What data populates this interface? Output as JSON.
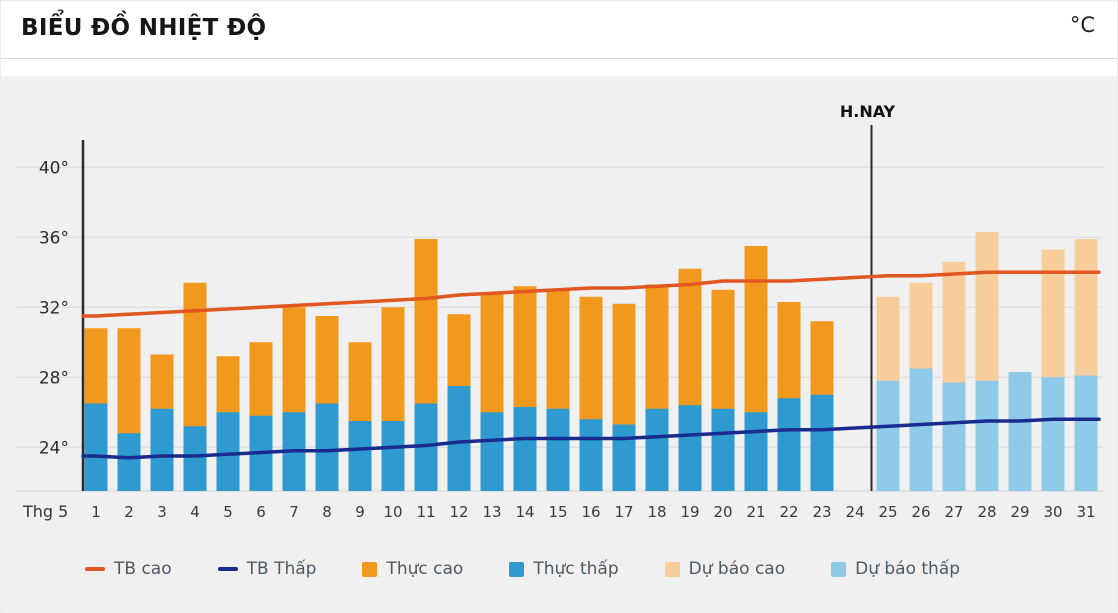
{
  "header": {
    "title": "BIỂU ĐỒ NHIỆT ĐỘ",
    "unit": "°C"
  },
  "chart_data": {
    "type": "bar",
    "title": "BIỂU ĐỒ NHIỆT ĐỘ",
    "unit": "°C",
    "month_label": "Thg 5",
    "today_label": "H.NAY",
    "today_after_day": 24,
    "x": [
      1,
      2,
      3,
      4,
      5,
      6,
      7,
      8,
      9,
      10,
      11,
      12,
      13,
      14,
      15,
      16,
      17,
      18,
      19,
      20,
      21,
      22,
      23,
      24,
      25,
      26,
      27,
      28,
      29,
      30,
      31
    ],
    "y_ticks": [
      24,
      28,
      32,
      36,
      40
    ],
    "ylim": [
      21.5,
      42
    ],
    "grid": true,
    "legend_position": "bottom",
    "series": [
      {
        "name": "TB cao",
        "type": "line",
        "color": "#E2561F",
        "values": [
          31.5,
          31.6,
          31.7,
          31.8,
          31.9,
          32.0,
          32.1,
          32.2,
          32.3,
          32.4,
          32.5,
          32.7,
          32.8,
          32.9,
          33.0,
          33.1,
          33.1,
          33.2,
          33.3,
          33.5,
          33.5,
          33.5,
          33.6,
          33.7,
          33.8,
          33.8,
          33.9,
          34.0,
          34.0,
          34.0,
          34.0
        ]
      },
      {
        "name": "TB Thấp",
        "type": "line",
        "color": "#1A2B8F",
        "values": [
          23.5,
          23.4,
          23.5,
          23.5,
          23.6,
          23.7,
          23.8,
          23.8,
          23.9,
          24.0,
          24.1,
          24.3,
          24.4,
          24.5,
          24.5,
          24.5,
          24.5,
          24.6,
          24.7,
          24.8,
          24.9,
          25.0,
          25.0,
          25.1,
          25.2,
          25.3,
          25.4,
          25.5,
          25.5,
          25.6,
          25.6
        ]
      },
      {
        "name": "Thực cao",
        "type": "bar",
        "color": "#F2991D",
        "values": [
          30.8,
          30.8,
          29.3,
          33.4,
          29.2,
          30.0,
          32.0,
          31.5,
          30.0,
          32.0,
          35.9,
          31.6,
          32.8,
          33.2,
          33.0,
          32.6,
          32.2,
          33.3,
          34.2,
          33.0,
          35.5,
          32.3,
          31.2,
          null,
          null,
          null,
          null,
          null,
          null,
          null,
          null
        ]
      },
      {
        "name": "Thực thấp",
        "type": "bar",
        "color": "#2E9AD0",
        "values": [
          26.5,
          24.8,
          26.2,
          25.2,
          26.0,
          25.8,
          26.0,
          26.5,
          25.5,
          25.5,
          26.5,
          27.5,
          26.0,
          26.3,
          26.2,
          25.6,
          25.3,
          26.2,
          26.4,
          26.2,
          26.0,
          26.8,
          27.0,
          null,
          null,
          null,
          null,
          null,
          null,
          null,
          null
        ]
      },
      {
        "name": "Dự báo cao",
        "type": "bar",
        "color": "#F7CD9B",
        "values": [
          null,
          null,
          null,
          null,
          null,
          null,
          null,
          null,
          null,
          null,
          null,
          null,
          null,
          null,
          null,
          null,
          null,
          null,
          null,
          null,
          null,
          null,
          null,
          null,
          32.6,
          33.4,
          34.6,
          36.3,
          null,
          35.3,
          35.9
        ]
      },
      {
        "name": "Dự báo thấp",
        "type": "bar",
        "color": "#8FCBE9",
        "values": [
          null,
          null,
          null,
          null,
          null,
          null,
          null,
          null,
          null,
          null,
          null,
          null,
          null,
          null,
          null,
          null,
          null,
          null,
          null,
          null,
          null,
          null,
          null,
          null,
          27.8,
          28.5,
          27.7,
          27.8,
          28.3,
          28.0,
          28.1
        ]
      }
    ]
  },
  "legend": {
    "items": [
      {
        "label": "TB cao",
        "marker": "line",
        "color": "#E2561F"
      },
      {
        "label": "TB Thấp",
        "marker": "line",
        "color": "#1A2B8F"
      },
      {
        "label": "Thực cao",
        "marker": "square",
        "color": "#F2991D"
      },
      {
        "label": "Thực thấp",
        "marker": "square",
        "color": "#2E9AD0"
      },
      {
        "label": "Dự báo cao",
        "marker": "square",
        "color": "#F7CD9B"
      },
      {
        "label": "Dự báo thấp",
        "marker": "square",
        "color": "#8FCBE9"
      }
    ]
  }
}
